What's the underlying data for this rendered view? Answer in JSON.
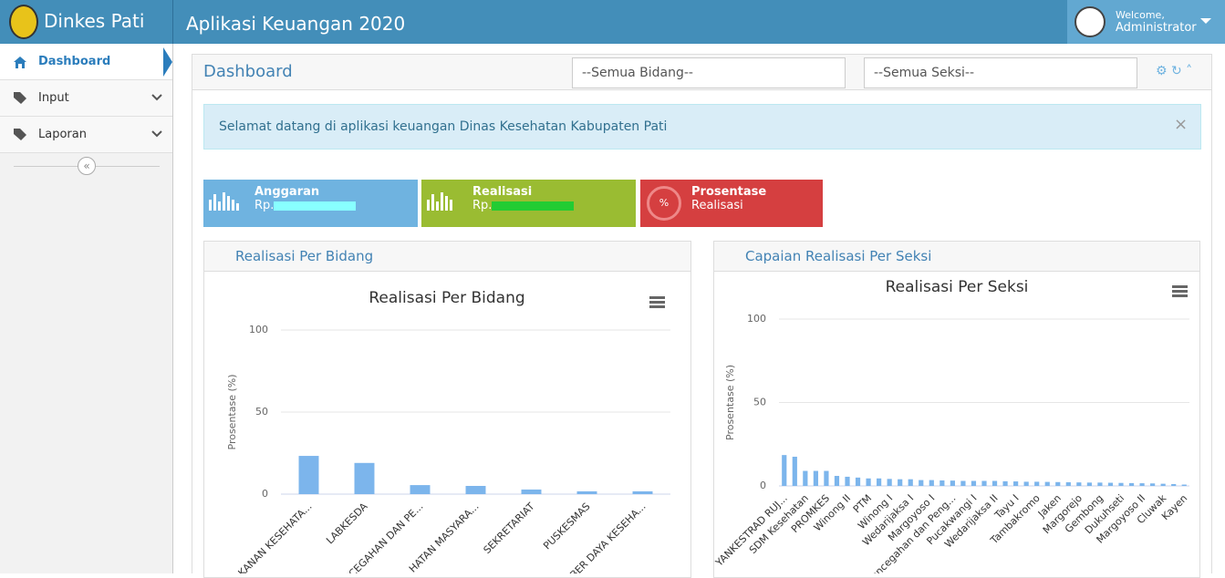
{
  "header": {
    "brand": "Dinkes Pati",
    "app_title": "Aplikasi Keuangan 2020",
    "welcome": "Welcome,",
    "user": "Administrator"
  },
  "sidebar": [
    {
      "label": "Dashboard"
    },
    {
      "label": "Input"
    },
    {
      "label": "Laporan"
    }
  ],
  "page_title": "Dashboard",
  "filters": [
    "--Semua Bidang--",
    "--Semua Seksi--"
  ],
  "alert": "Selamat datang di aplikasi keuangan Dinas Kesehatan Kabupaten Pati",
  "stats": [
    {
      "title": "Anggaran",
      "value": "Rp."
    },
    {
      "title": "Realisasi",
      "value": "Rp."
    },
    {
      "title": "Prosentase",
      "value": "Realisasi",
      "badge": "%"
    }
  ],
  "panels": [
    "Realisasi Per Bidang",
    "Capaian Realisasi Per Seksi"
  ],
  "chart_data": [
    {
      "type": "bar",
      "title": "Realisasi Per Bidang",
      "y_label": "Prosentase (%)",
      "categories": [
        "KANAN KESEHATA...",
        "LABKESDA",
        "NCEGAHAN DAN PE...",
        "HATAN MASYARA...",
        "SEKRETARIAT",
        "PUSKESMAS",
        "BER DAYA KESEHA..."
      ],
      "values": [
        23.3,
        19,
        5.5,
        5,
        2.8,
        1.7,
        1.7
      ],
      "color": "#7cb5ec",
      "ylim": [
        0,
        100
      ],
      "yticks": [
        0,
        50,
        100
      ],
      "grid": true
    },
    {
      "type": "bar",
      "title": "Realisasi Per Seksi",
      "y_label": "Prosentase (%)",
      "categories": [
        "YANKESTRAD RUJ...",
        null,
        "SDM Kesehatan",
        null,
        "PROMKES",
        null,
        "Winong II",
        null,
        "PTM",
        null,
        "Winong I",
        null,
        "Wedarijaksa I",
        null,
        "Margoyoso I",
        null,
        "Pencegahan dan Peng...",
        null,
        "Pucakwangi I",
        null,
        "Wedarijaksa II",
        null,
        "Tayu I",
        null,
        "Tambakromo",
        null,
        "Jaken",
        null,
        "Margorejo",
        null,
        "Gembong",
        null,
        "Dukuhseti",
        null,
        "Margoyoso II",
        null,
        "Cluwak",
        null,
        "Kayen"
      ],
      "values": [
        18.5,
        17.5,
        9,
        9,
        9,
        6,
        5.5,
        5,
        4.5,
        4.5,
        4.2,
        4,
        4,
        3.5,
        3.5,
        3.3,
        3.2,
        3,
        3,
        3,
        3,
        2.8,
        2.7,
        2.5,
        2.5,
        2.4,
        2.3,
        2.2,
        2.1,
        2,
        2,
        1.9,
        1.8,
        1.7,
        1.6,
        1.5,
        1.3,
        1.1,
        0.8
      ],
      "color": "#7cb5ec",
      "ylim": [
        0,
        100
      ],
      "yticks": [
        0,
        50,
        100
      ],
      "grid": true
    }
  ]
}
